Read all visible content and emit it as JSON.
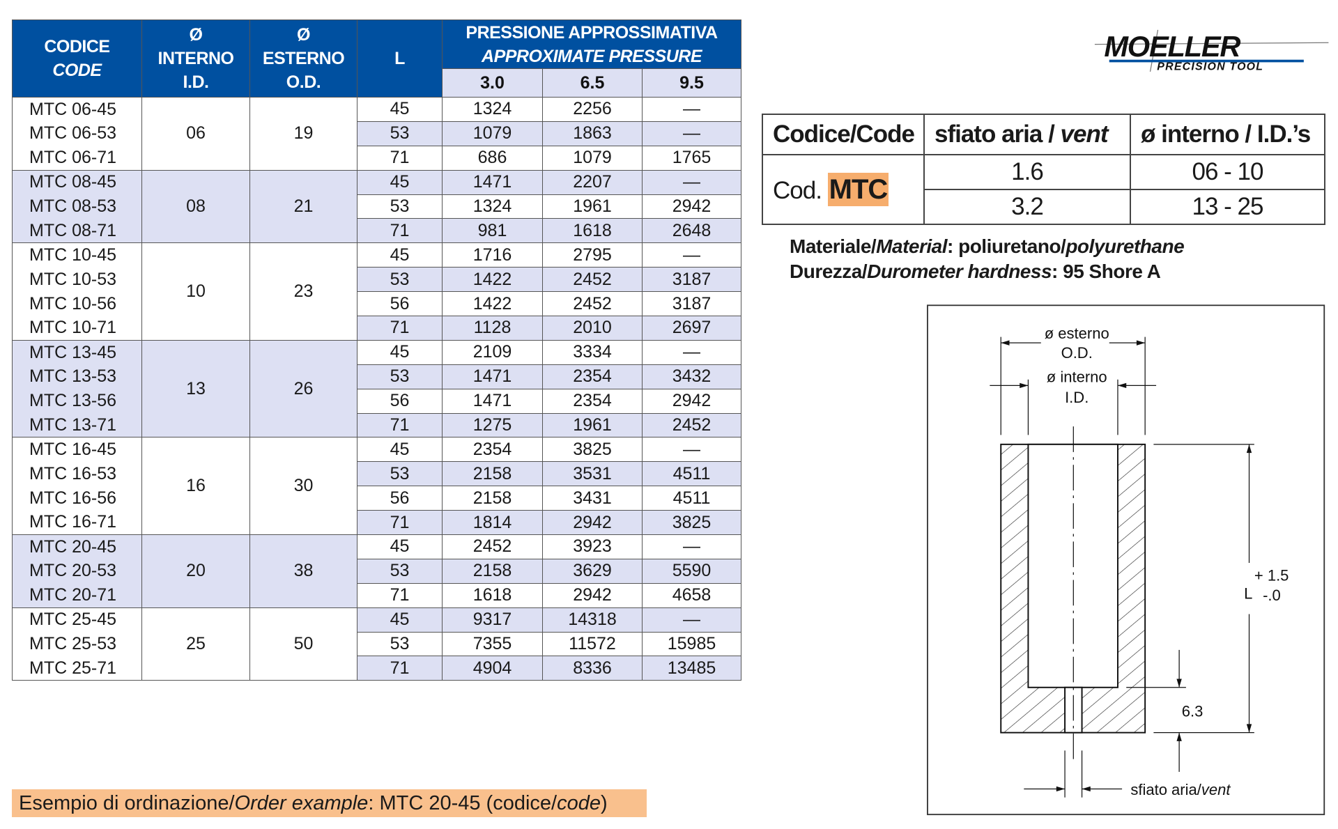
{
  "main_table": {
    "headers": {
      "code": "CODICE",
      "code_en": "CODE",
      "id_symbol": "Ø",
      "id": "INTERNO",
      "id_en": "I.D.",
      "od_symbol": "Ø",
      "od": "ESTERNO",
      "od_en": "O.D.",
      "length": "L",
      "pressure": "PRESSIONE APPROSSIMATIVA",
      "pressure_en": "APPROXIMATE PRESSURE",
      "pressure_cols": [
        "3.0",
        "6.5",
        "9.5"
      ]
    },
    "groups": [
      {
        "id": "06",
        "od": "19",
        "rows": [
          {
            "code": "MTC 06-45",
            "L": "45",
            "p": [
              "1324",
              "2256",
              "—"
            ]
          },
          {
            "code": "MTC 06-53",
            "L": "53",
            "p": [
              "1079",
              "1863",
              "—"
            ]
          },
          {
            "code": "MTC 06-71",
            "L": "71",
            "p": [
              "686",
              "1079",
              "1765"
            ]
          }
        ]
      },
      {
        "id": "08",
        "od": "21",
        "rows": [
          {
            "code": "MTC 08-45",
            "L": "45",
            "p": [
              "1471",
              "2207",
              "—"
            ]
          },
          {
            "code": "MTC 08-53",
            "L": "53",
            "p": [
              "1324",
              "1961",
              "2942"
            ]
          },
          {
            "code": "MTC 08-71",
            "L": "71",
            "p": [
              "981",
              "1618",
              "2648"
            ]
          }
        ]
      },
      {
        "id": "10",
        "od": "23",
        "rows": [
          {
            "code": "MTC 10-45",
            "L": "45",
            "p": [
              "1716",
              "2795",
              "—"
            ]
          },
          {
            "code": "MTC 10-53",
            "L": "53",
            "p": [
              "1422",
              "2452",
              "3187"
            ]
          },
          {
            "code": "MTC 10-56",
            "L": "56",
            "p": [
              "1422",
              "2452",
              "3187"
            ]
          },
          {
            "code": "MTC 10-71",
            "L": "71",
            "p": [
              "1128",
              "2010",
              "2697"
            ]
          }
        ]
      },
      {
        "id": "13",
        "od": "26",
        "rows": [
          {
            "code": "MTC 13-45",
            "L": "45",
            "p": [
              "2109",
              "3334",
              "—"
            ]
          },
          {
            "code": "MTC 13-53",
            "L": "53",
            "p": [
              "1471",
              "2354",
              "3432"
            ]
          },
          {
            "code": "MTC 13-56",
            "L": "56",
            "p": [
              "1471",
              "2354",
              "2942"
            ]
          },
          {
            "code": "MTC 13-71",
            "L": "71",
            "p": [
              "1275",
              "1961",
              "2452"
            ]
          }
        ]
      },
      {
        "id": "16",
        "od": "30",
        "rows": [
          {
            "code": "MTC 16-45",
            "L": "45",
            "p": [
              "2354",
              "3825",
              "—"
            ]
          },
          {
            "code": "MTC 16-53",
            "L": "53",
            "p": [
              "2158",
              "3531",
              "4511"
            ]
          },
          {
            "code": "MTC 16-56",
            "L": "56",
            "p": [
              "2158",
              "3431",
              "4511"
            ]
          },
          {
            "code": "MTC 16-71",
            "L": "71",
            "p": [
              "1814",
              "2942",
              "3825"
            ]
          }
        ]
      },
      {
        "id": "20",
        "od": "38",
        "rows": [
          {
            "code": "MTC 20-45",
            "L": "45",
            "p": [
              "2452",
              "3923",
              "—"
            ]
          },
          {
            "code": "MTC 20-53",
            "L": "53",
            "p": [
              "2158",
              "3629",
              "5590"
            ]
          },
          {
            "code": "MTC 20-71",
            "L": "71",
            "p": [
              "1618",
              "2942",
              "4658"
            ]
          }
        ]
      },
      {
        "id": "25",
        "od": "50",
        "rows": [
          {
            "code": "MTC 25-45",
            "L": "45",
            "p": [
              "9317",
              "14318",
              "—"
            ]
          },
          {
            "code": "MTC 25-53",
            "L": "53",
            "p": [
              "7355",
              "11572",
              "15985"
            ]
          },
          {
            "code": "MTC 25-71",
            "L": "71",
            "p": [
              "4904",
              "8336",
              "13485"
            ]
          }
        ]
      }
    ]
  },
  "logo": {
    "name": "MOELLER",
    "tagline": "PRECISION TOOL"
  },
  "vent_table": {
    "headers": {
      "code": "Codice/Code",
      "vent": "sfiato aria / ",
      "vent_en": "vent",
      "id": "ø interno / I.D.’s"
    },
    "cod_label": "Cod.",
    "cod_value": "MTC",
    "rows": [
      {
        "vent": "1.6",
        "ids": "06 - 10"
      },
      {
        "vent": "3.2",
        "ids": "13 - 25"
      }
    ]
  },
  "material": {
    "label": "Materiale/",
    "label_en": "Material",
    "value": ": poliuretano/",
    "value_en": "polyurethane",
    "hardness_label": "Durezza/",
    "hardness_label_en": "Durometer hardness",
    "hardness_value": ": 95 Shore A"
  },
  "drawing": {
    "od_label": "ø esterno",
    "od_en": "O.D.",
    "id_label": "ø interno",
    "id_en": "I.D.",
    "length": "L",
    "tol_plus": "+ 1.5",
    "tol_minus": "-.0",
    "vent_depth": "6.3",
    "vent_label": "sfiato aria/",
    "vent_label_en": "vent"
  },
  "order_example": {
    "label": "Esempio di ordinazione/",
    "label_en": "Order example",
    "value": ": MTC 20-45 (codice/",
    "value_en": "code",
    "close": ")"
  },
  "colors": {
    "header_blue": "#0050a0",
    "row_shade": "#dde0f3",
    "highlight_orange": "#f6ad6d",
    "order_banner": "#f9c08d"
  }
}
